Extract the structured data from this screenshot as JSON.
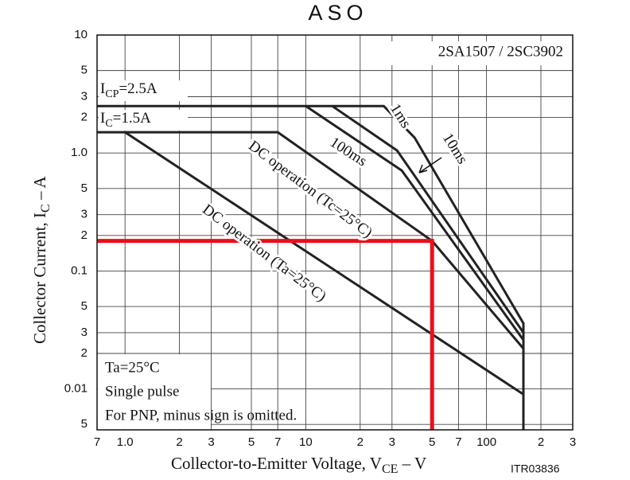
{
  "chart_data": {
    "type": "line",
    "title": "ASO",
    "subtitle": "2SA1507 / 2SC3902",
    "x_label_parts": [
      "Collector-to-Emitter Voltage, V",
      "CE",
      " – V"
    ],
    "y_label_parts": [
      "Collector Current, I",
      "C",
      " – A"
    ],
    "figure_code": "ITR03836",
    "log_x": true,
    "log_y": true,
    "grid": true,
    "xlim": [
      0.7,
      300
    ],
    "ylim": [
      0.0045,
      10
    ],
    "xticks": [
      {
        "value": 0.7,
        "label": "7"
      },
      {
        "value": 1,
        "label": "1.0"
      },
      2,
      3,
      5,
      7,
      10,
      {
        "value": 20,
        "label": "2"
      },
      {
        "value": 30,
        "label": "3"
      },
      {
        "value": 50,
        "label": "5"
      },
      {
        "value": 70,
        "label": "7"
      },
      100,
      {
        "value": 200,
        "label": "2"
      },
      {
        "value": 300,
        "label": "3"
      }
    ],
    "yticks": [
      10,
      5,
      3,
      2,
      {
        "value": 1,
        "label": "1.0"
      },
      {
        "value": 0.5,
        "label": "5"
      },
      {
        "value": 0.3,
        "label": "3"
      },
      {
        "value": 0.2,
        "label": "2"
      },
      0.1,
      {
        "value": 0.05,
        "label": "5"
      },
      {
        "value": 0.03,
        "label": "3"
      },
      {
        "value": 0.02,
        "label": "2"
      },
      0.01,
      {
        "value": 0.005,
        "label": "5"
      }
    ],
    "annotations": [
      {
        "parts": [
          "I",
          "CP",
          "=2.5A"
        ]
      },
      {
        "parts": [
          "I",
          "C",
          "=1.5A"
        ]
      }
    ],
    "notes": [
      "Ta=25°C",
      "Single pulse",
      "For PNP, minus sign is omitted."
    ],
    "series": [
      {
        "name": "1ms",
        "color": "#222222",
        "x": [
          0.7,
          27,
          40,
          160,
          160
        ],
        "values": [
          2.5,
          2.5,
          1.35,
          0.036,
          0.0045
        ]
      },
      {
        "name": "10ms",
        "color": "#222222",
        "x": [
          14,
          32,
          160
        ],
        "values": [
          2.5,
          1.05,
          0.03
        ]
      },
      {
        "name": "100ms",
        "color": "#222222",
        "x": [
          10,
          34,
          160
        ],
        "values": [
          2.5,
          0.71,
          0.026
        ]
      },
      {
        "name": "DC operation (Tc=25°C)",
        "color": "#222222",
        "x": [
          0.7,
          7,
          50,
          160
        ],
        "values": [
          1.5,
          1.5,
          0.18,
          0.022
        ]
      },
      {
        "name": "DC operation (Ta=25°C)",
        "color": "#222222",
        "x": [
          1,
          160
        ],
        "values": [
          1.5,
          0.009
        ]
      },
      {
        "color": "#e8101a",
        "x": [
          0.7,
          50,
          50
        ],
        "values": [
          0.18,
          0.18,
          0.0045
        ]
      }
    ]
  }
}
